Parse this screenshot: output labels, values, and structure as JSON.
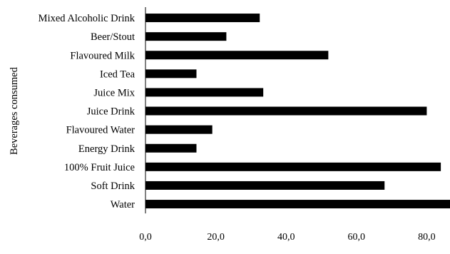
{
  "chart_data": {
    "type": "bar",
    "orientation": "horizontal",
    "categories": [
      "Water",
      "Soft Drink",
      "100% Fruit Juice",
      "Energy Drink",
      "Flavoured Water",
      "Juice Drink",
      "Juice Mix",
      "Iced Tea",
      "Flavoured Milk",
      "Beer/Stout",
      "Mixed Alcoholic Drink"
    ],
    "values": [
      87.0,
      68.0,
      84.0,
      14.5,
      19.0,
      80.0,
      33.5,
      14.5,
      52.0,
      23.0,
      32.5
    ],
    "xlabel": "%",
    "ylabel": "Beverages consumed",
    "xticks": [
      "0,0",
      "20,0",
      "40,0",
      "60,0",
      "80,0"
    ],
    "xlim": [
      0,
      87
    ],
    "grid": false,
    "bar_color": "#000000"
  }
}
